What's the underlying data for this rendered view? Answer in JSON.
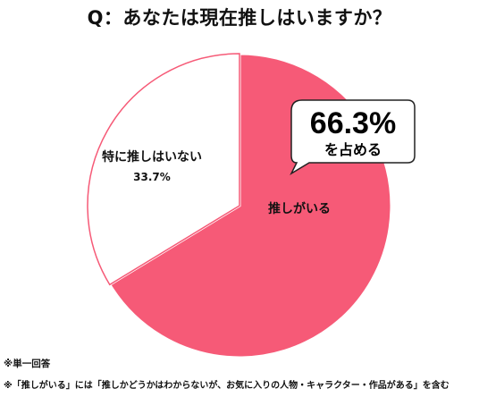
{
  "colors": {
    "accent": "#f65a77",
    "remainder_fill": "#ffffff",
    "callout_border": "#222222",
    "text": "#111111"
  },
  "chart_data": {
    "type": "pie",
    "title": "Q：あなたは現在推しはいますか？",
    "slices": [
      {
        "label": "推しがいる",
        "value": 66.3,
        "value_label": ""
      },
      {
        "label": "特に推しはいない",
        "value": 33.7,
        "value_label": "33.7%"
      }
    ],
    "callout": {
      "value": "66.3%",
      "text": "を占める"
    },
    "legend": "none"
  },
  "footnotes": [
    "※単一回答",
    "※「推しがいる」には「推しかどうかはわからないが、お気に入りの人物・キャラクター・作品がある」を含む"
  ]
}
